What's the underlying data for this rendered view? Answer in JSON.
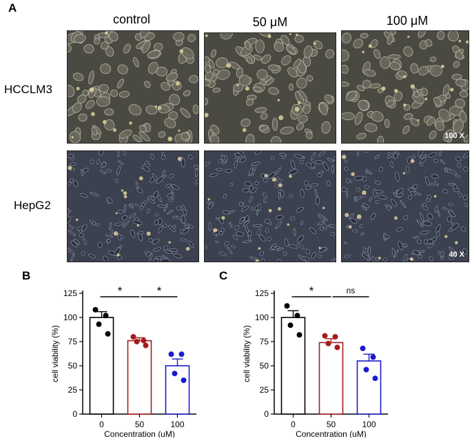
{
  "panels": {
    "a": "A",
    "b": "B",
    "c": "C"
  },
  "micro": {
    "columns": [
      "control",
      "50 μM",
      "100 μM"
    ],
    "rows": [
      "HCCLM3",
      "HepG2"
    ],
    "magnifications": [
      "100 X",
      "40 X"
    ]
  },
  "chart_data": [
    {
      "type": "bar",
      "categories": [
        "0",
        "50",
        "100"
      ],
      "values": [
        100,
        76,
        50
      ],
      "errors": [
        6,
        3,
        7
      ],
      "points": [
        [
          108,
          102,
          93,
          83
        ],
        [
          80,
          76,
          75,
          71
        ],
        [
          62,
          62,
          42,
          35
        ]
      ],
      "bar_colors": [
        "#000000",
        "#a61c1c",
        "#1a1acc"
      ],
      "xlabel": "Concentration (uM)",
      "ylabel": "cell viability (%)",
      "ylim": [
        0,
        125
      ],
      "yticks": [
        "0",
        "25",
        "50",
        "75",
        "100",
        "125"
      ],
      "comparisons": [
        {
          "from": 0,
          "to": 1,
          "label": "*"
        },
        {
          "from": 1,
          "to": 2,
          "label": "*"
        }
      ]
    },
    {
      "type": "bar",
      "categories": [
        "0",
        "50",
        "100"
      ],
      "values": [
        100,
        74,
        55
      ],
      "errors": [
        7,
        4,
        7
      ],
      "points": [
        [
          112,
          102,
          92,
          82
        ],
        [
          81,
          80,
          73,
          69
        ],
        [
          68,
          59,
          46,
          37
        ]
      ],
      "bar_colors": [
        "#000000",
        "#a61c1c",
        "#1a1acc"
      ],
      "xlabel": "Concentration (uM)",
      "ylabel": "cell viability (%)",
      "ylim": [
        0,
        125
      ],
      "yticks": [
        "0",
        "25",
        "50",
        "75",
        "100",
        "125"
      ],
      "comparisons": [
        {
          "from": 0,
          "to": 1,
          "label": "*"
        },
        {
          "from": 1,
          "to": 2,
          "label": "ns"
        }
      ]
    }
  ]
}
